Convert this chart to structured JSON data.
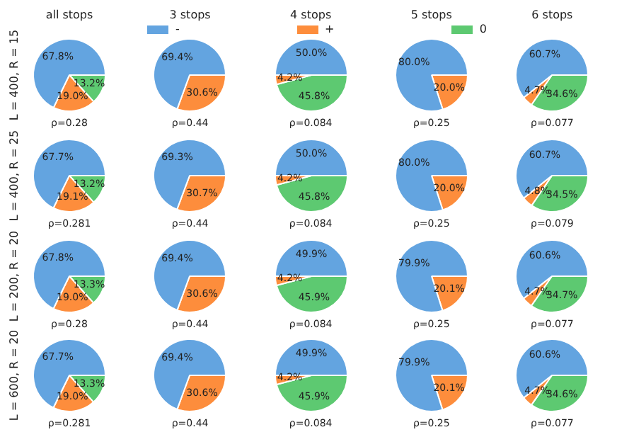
{
  "chart_data": [
    {
      "type": "pie",
      "title": "all stops",
      "ylabel": "L = 400, R = 15",
      "xlabel": "ρ=0.28",
      "categories": [
        "-",
        "+",
        "0"
      ],
      "values": [
        67.8,
        19.0,
        13.2
      ],
      "value_labels": [
        "67.8%",
        "19.0%",
        "13.2%"
      ],
      "colors": [
        "#63a4e0",
        "#fd8d3c",
        "#5dc971"
      ],
      "legend": "top"
    },
    {
      "type": "pie",
      "title": "3 stops",
      "xlabel": "ρ=0.44",
      "values": [
        69.4,
        30.6
      ],
      "value_labels": [
        "69.4%",
        "30.6%"
      ],
      "colors": [
        "#63a4e0",
        "#fd8d3c"
      ]
    },
    {
      "type": "pie",
      "title": "4 stops",
      "xlabel": "ρ=0.084",
      "values": [
        50.0,
        4.2,
        45.8
      ],
      "value_labels": [
        "50.0%",
        "4.2%",
        "45.8%"
      ],
      "colors": [
        "#63a4e0",
        "#fd8d3c",
        "#5dc971"
      ]
    },
    {
      "type": "pie",
      "title": "5 stops",
      "xlabel": "ρ=0.25",
      "values": [
        80.0,
        20.0
      ],
      "value_labels": [
        "80.0%",
        "20.0%"
      ],
      "colors": [
        "#63a4e0",
        "#fd8d3c"
      ]
    },
    {
      "type": "pie",
      "title": "6 stops",
      "xlabel": "ρ=0.077",
      "values": [
        60.7,
        4.7,
        34.6
      ],
      "value_labels": [
        "60.7%",
        "4.7%",
        "34.6%"
      ],
      "colors": [
        "#63a4e0",
        "#fd8d3c",
        "#5dc971"
      ]
    },
    {
      "type": "pie",
      "ylabel": "L = 400, R = 25",
      "xlabel": "ρ=0.281",
      "values": [
        67.7,
        19.1,
        13.2
      ],
      "value_labels": [
        "67.7%",
        "19.1%",
        "13.2%"
      ],
      "colors": [
        "#63a4e0",
        "#fd8d3c",
        "#5dc971"
      ]
    },
    {
      "type": "pie",
      "xlabel": "ρ=0.44",
      "values": [
        69.3,
        30.7
      ],
      "value_labels": [
        "69.3%",
        "30.7%"
      ],
      "colors": [
        "#63a4e0",
        "#fd8d3c"
      ]
    },
    {
      "type": "pie",
      "xlabel": "ρ=0.084",
      "values": [
        50.0,
        4.2,
        45.8
      ],
      "value_labels": [
        "50.0%",
        "4.2%",
        "45.8%"
      ],
      "colors": [
        "#63a4e0",
        "#fd8d3c",
        "#5dc971"
      ]
    },
    {
      "type": "pie",
      "xlabel": "ρ=0.25",
      "values": [
        80.0,
        20.0
      ],
      "value_labels": [
        "80.0%",
        "20.0%"
      ],
      "colors": [
        "#63a4e0",
        "#fd8d3c"
      ]
    },
    {
      "type": "pie",
      "xlabel": "ρ=0.079",
      "values": [
        60.7,
        4.8,
        34.5
      ],
      "value_labels": [
        "60.7%",
        "4.8%",
        "34.5%"
      ],
      "colors": [
        "#63a4e0",
        "#fd8d3c",
        "#5dc971"
      ]
    },
    {
      "type": "pie",
      "ylabel": "L = 200, R = 20",
      "xlabel": "ρ=0.28",
      "values": [
        67.8,
        19.0,
        13.3
      ],
      "value_labels": [
        "67.8%",
        "19.0%",
        "13.3%"
      ],
      "colors": [
        "#63a4e0",
        "#fd8d3c",
        "#5dc971"
      ]
    },
    {
      "type": "pie",
      "xlabel": "ρ=0.44",
      "values": [
        69.4,
        30.6
      ],
      "value_labels": [
        "69.4%",
        "30.6%"
      ],
      "colors": [
        "#63a4e0",
        "#fd8d3c"
      ]
    },
    {
      "type": "pie",
      "xlabel": "ρ=0.084",
      "values": [
        49.9,
        4.2,
        45.9
      ],
      "value_labels": [
        "49.9%",
        "4.2%",
        "45.9%"
      ],
      "colors": [
        "#63a4e0",
        "#fd8d3c",
        "#5dc971"
      ]
    },
    {
      "type": "pie",
      "xlabel": "ρ=0.25",
      "values": [
        79.9,
        20.1
      ],
      "value_labels": [
        "79.9%",
        "20.1%"
      ],
      "colors": [
        "#63a4e0",
        "#fd8d3c"
      ]
    },
    {
      "type": "pie",
      "xlabel": "ρ=0.077",
      "values": [
        60.6,
        4.7,
        34.7
      ],
      "value_labels": [
        "60.6%",
        "4.7%",
        "34.7%"
      ],
      "colors": [
        "#63a4e0",
        "#fd8d3c",
        "#5dc971"
      ]
    },
    {
      "type": "pie",
      "ylabel": "L = 600, R = 20",
      "xlabel": "ρ=0.281",
      "values": [
        67.7,
        19.0,
        13.3
      ],
      "value_labels": [
        "67.7%",
        "19.0%",
        "13.3%"
      ],
      "colors": [
        "#63a4e0",
        "#fd8d3c",
        "#5dc971"
      ]
    },
    {
      "type": "pie",
      "xlabel": "ρ=0.44",
      "values": [
        69.4,
        30.6
      ],
      "value_labels": [
        "69.4%",
        "30.6%"
      ],
      "colors": [
        "#63a4e0",
        "#fd8d3c"
      ]
    },
    {
      "type": "pie",
      "xlabel": "ρ=0.084",
      "values": [
        49.9,
        4.2,
        45.9
      ],
      "value_labels": [
        "49.9%",
        "4.2%",
        "45.9%"
      ],
      "colors": [
        "#63a4e0",
        "#fd8d3c",
        "#5dc971"
      ]
    },
    {
      "type": "pie",
      "xlabel": "ρ=0.25",
      "values": [
        79.9,
        20.1
      ],
      "value_labels": [
        "79.9%",
        "20.1%"
      ],
      "colors": [
        "#63a4e0",
        "#fd8d3c"
      ]
    },
    {
      "type": "pie",
      "xlabel": "ρ=0.077",
      "values": [
        60.6,
        4.7,
        34.6
      ],
      "value_labels": [
        "60.6%",
        "4.7%",
        "34.6%"
      ],
      "colors": [
        "#63a4e0",
        "#fd8d3c",
        "#5dc971"
      ]
    }
  ]
}
